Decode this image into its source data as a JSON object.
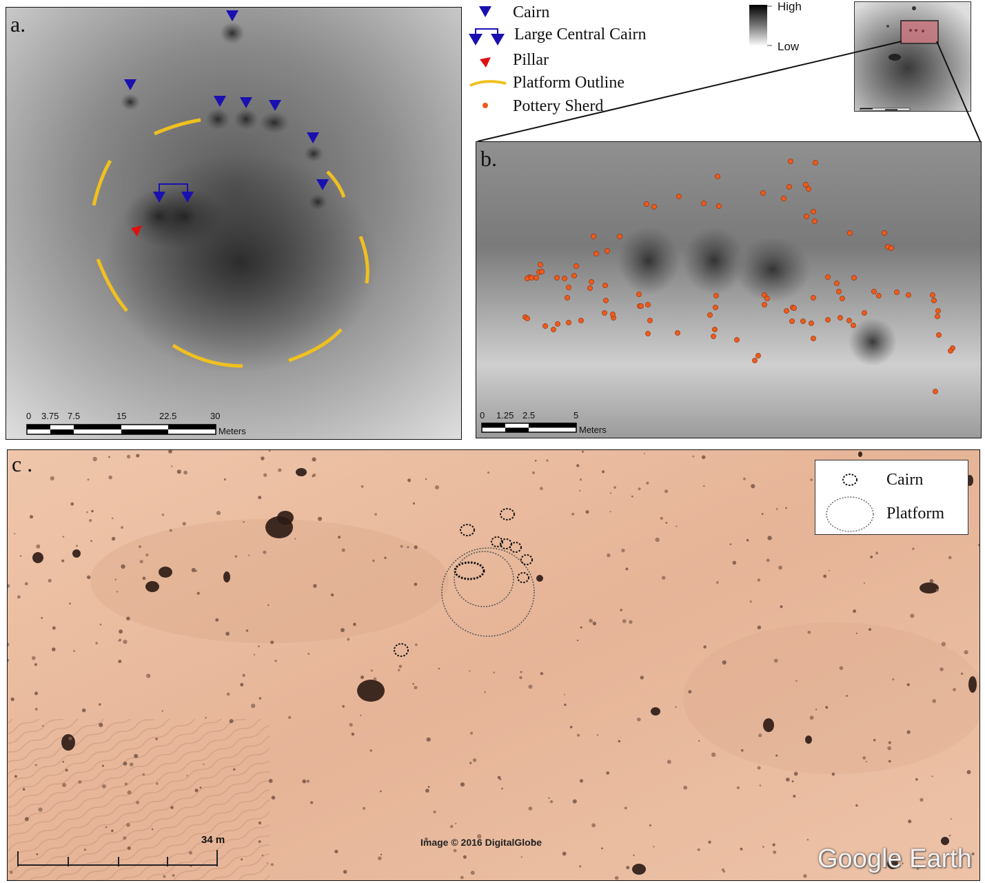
{
  "figure": {
    "panel_a": {
      "letter": "a.",
      "scale_ticks": [
        "0",
        "3.75",
        "7.5",
        "15",
        "22.5",
        "30"
      ],
      "scale_unit": "Meters"
    },
    "panel_b": {
      "letter": "b.",
      "scale_ticks": [
        "0",
        "1.25",
        "2.5",
        "5"
      ],
      "scale_unit": "Meters"
    },
    "panel_c": {
      "letter": "c .",
      "scale_label": "34 m",
      "credit": "Image © 2016 DigitalGlobe",
      "watermark": "Google Earth",
      "legend": {
        "cairn": "Cairn",
        "platform": "Platform"
      }
    }
  },
  "legend": {
    "cairn": "Cairn",
    "large_central_cairn": "Large Central Cairn",
    "pillar": "Pillar",
    "platform_outline": "Platform Outline",
    "pottery_sherd": "Pottery Sherd"
  },
  "elevation_ramp": {
    "high": "High",
    "low": "Low"
  },
  "colors": {
    "cairn_marker": "#1a10b0",
    "pillar_marker": "#e01010",
    "platform_outline": "#f0c020",
    "pottery_sherd": "#ee5a1c",
    "satellite_base": "#e8b99b"
  },
  "icons": {
    "cairn": "blue-triangle-icon",
    "large_central_cairn": "bracketed-triangles-icon",
    "pillar": "red-triangle-icon",
    "platform_outline": "yellow-line-icon",
    "pottery_sherd": "orange-dot-icon"
  }
}
